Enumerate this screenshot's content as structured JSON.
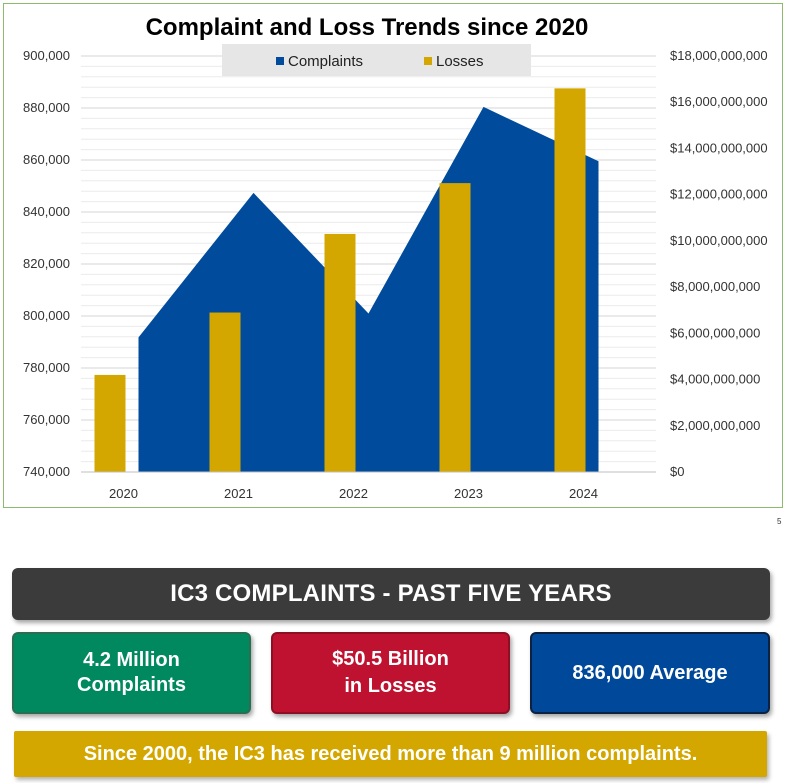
{
  "chart_data": {
    "type": "area+bar",
    "title": "Complaint and Loss Trends since 2020",
    "categories": [
      "2020",
      "2021",
      "2022",
      "2023",
      "2024"
    ],
    "series": [
      {
        "name": "Complaints",
        "type": "area",
        "axis": "left",
        "color": "#004b9b",
        "values": [
          791790,
          847376,
          800944,
          880418,
          859532
        ]
      },
      {
        "name": "Losses",
        "type": "bar",
        "axis": "right",
        "color": "#d4a700",
        "values": [
          4200000000,
          6900000000,
          10300000000,
          12500000000,
          16600000000
        ]
      }
    ],
    "y_left": {
      "min": 740000,
      "max": 900000,
      "ticks": [
        "740,000",
        "760,000",
        "780,000",
        "800,000",
        "820,000",
        "840,000",
        "860,000",
        "880,000",
        "900,000"
      ]
    },
    "y_right": {
      "min": 0,
      "max": 18000000000,
      "ticks": [
        "$0",
        "$2,000,000,000",
        "$4,000,000,000",
        "$6,000,000,000",
        "$8,000,000,000",
        "$10,000,000,000",
        "$12,000,000,000",
        "$14,000,000,000",
        "$16,000,000,000",
        "$18,000,000,000"
      ]
    },
    "legend_position": "top-center",
    "grid": true
  },
  "page_number": "5",
  "header_banner": "IC3 COMPLAINTS - PAST FIVE YEARS",
  "stats": [
    {
      "text": "4.2 Million\nComplaints",
      "color": "#00895f"
    },
    {
      "text": "$50.5 Billion\nin Losses",
      "color": "#be1230"
    },
    {
      "text": "836,000 Average",
      "color": "#00489a"
    }
  ],
  "footer_banner": "Since 2000, the IC3 has received more than 9 million complaints."
}
